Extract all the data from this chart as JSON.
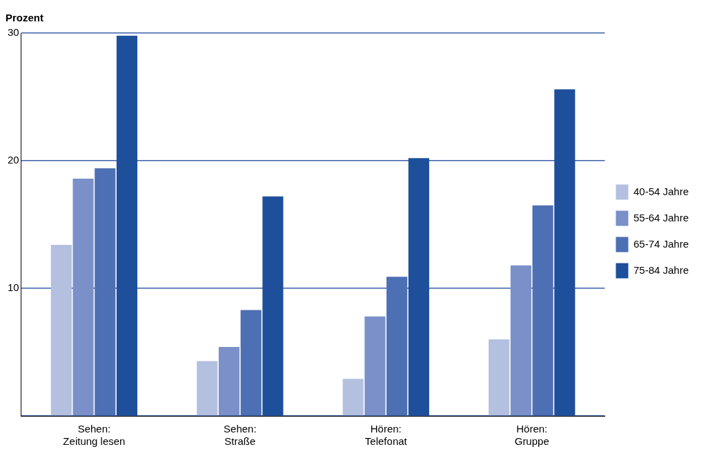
{
  "chart_data": {
    "type": "bar",
    "ylabel": "Prozent",
    "categories": [
      "Sehen:\nZeitung lesen",
      "Sehen:\nStraße",
      "Hören:\nTelefonat",
      "Hören:\nGruppe"
    ],
    "series": [
      {
        "name": "40-54 Jahre",
        "color": "#b4c0e0",
        "values": [
          13.4,
          4.3,
          2.9,
          6.0
        ]
      },
      {
        "name": "55-64 Jahre",
        "color": "#7b90c8",
        "values": [
          18.6,
          5.4,
          7.8,
          11.8
        ]
      },
      {
        "name": "65-74 Jahre",
        "color": "#4d6fb3",
        "values": [
          19.4,
          8.3,
          10.9,
          16.5
        ]
      },
      {
        "name": "75-84 Jahre",
        "color": "#1e4f9a",
        "values": [
          29.8,
          17.2,
          20.2,
          25.6
        ]
      }
    ],
    "ylim": [
      0,
      30
    ],
    "yticks": [
      {
        "value": 0,
        "label": null
      },
      10,
      20,
      30
    ],
    "grid": "y",
    "legend": "right"
  }
}
